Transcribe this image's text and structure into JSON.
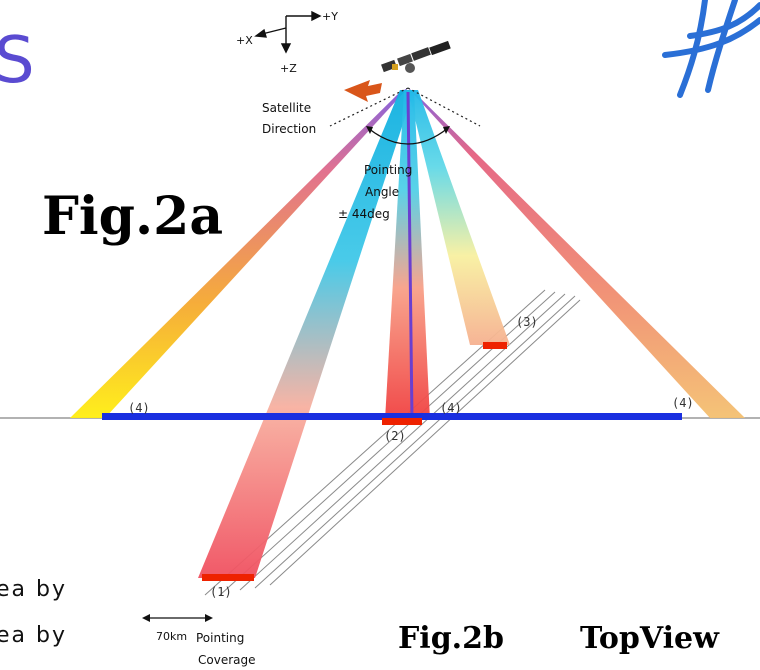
{
  "corner_letter": "S",
  "axes": {
    "plus_x": "+X",
    "plus_y": "+Y",
    "plus_z": "+Z"
  },
  "satellite": {
    "direction_line1": "Satellite",
    "direction_line2": "Direction",
    "pointing_line1": "Pointing",
    "pointing_line2": "Angle",
    "pointing_line3": "± 44deg"
  },
  "fig2a_title": "Fig.2a",
  "fig2b_title": "Fig.2b",
  "topview_title": "TopView",
  "beam_labels": {
    "b1": "(1)",
    "b2": "(2)",
    "b3": "(3)",
    "b4_left": "(4)",
    "b4_center": "(4)",
    "b4_right": "(4)"
  },
  "coverage": {
    "km_label": "70km",
    "pointing": "Pointing",
    "coverage": "Coverage"
  },
  "left_text": {
    "line1": "ea by",
    "line2": "ea by"
  },
  "colors": {
    "ground_line": "#999999",
    "blue_bar": "#1a2fe0",
    "red_marker": "#ee2200",
    "corner_text": "#5a4bd1",
    "logo": "#2a6fd6"
  }
}
